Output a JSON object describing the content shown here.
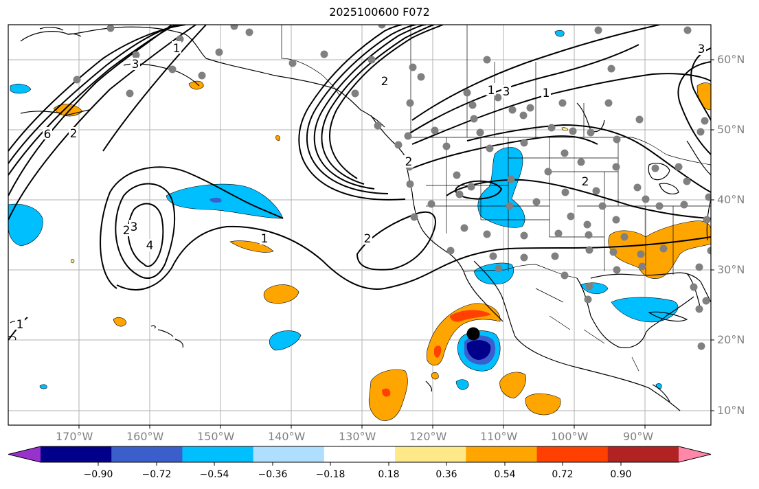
{
  "title": "2025100600 F072",
  "lon_labels": [
    "170°W",
    "160°W",
    "150°W",
    "140°W",
    "130°W",
    "120°W",
    "110°W",
    "100°W",
    "90°W"
  ],
  "lat_labels": [
    "60°N",
    "50°N",
    "40°N",
    "30°N",
    "20°N",
    "10°N"
  ],
  "colorbar": {
    "ticks": [
      "−0.90",
      "−0.72",
      "−0.54",
      "−0.36",
      "−0.18",
      "0.18",
      "0.36",
      "0.54",
      "0.72",
      "0.90"
    ],
    "colors": [
      "#9932cc",
      "#00008b",
      "#3a5fcd",
      "#00bfff",
      "#afdfff",
      "#ffffff",
      "#ffe888",
      "#ffa500",
      "#ff4000",
      "#b22222",
      "#ff88aa"
    ]
  },
  "contour_labels": [
    "1",
    "2",
    "3",
    "6",
    "1",
    "2",
    "3",
    "1",
    "2",
    "3",
    "4",
    "1",
    "2",
    "2",
    "1",
    "2",
    "3"
  ],
  "marker_colors": {
    "station": "#808080",
    "storm": "#000000"
  }
}
